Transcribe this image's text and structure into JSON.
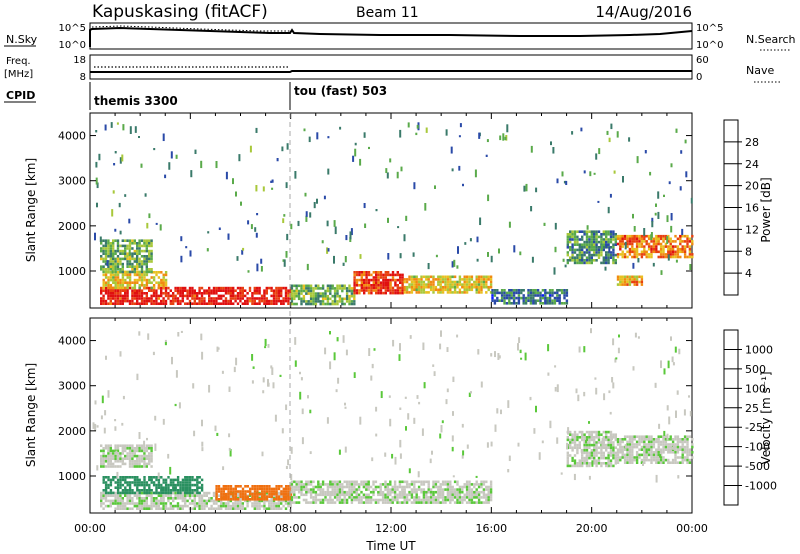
{
  "header": {
    "station": "Kapuskasing (fitACF)",
    "beam": "Beam 11",
    "date": "14/Aug/2016"
  },
  "nsky_panel": {
    "label": "N.Sky",
    "right_label": "N.Search",
    "left_ticks": [
      "10^5",
      "10^0"
    ],
    "right_ticks": [
      "10^5",
      "10^0"
    ]
  },
  "freq_panel": {
    "label_line1": "Freq.",
    "label_line2": "[MHz]",
    "left_ticks": [
      "18",
      "8"
    ],
    "right_ticks": [
      "60",
      "0"
    ],
    "right_label": "Nave"
  },
  "cpid": {
    "label": "CPID",
    "programs": [
      {
        "name": "themis 3300",
        "start_hour": 0,
        "end_hour": 8
      },
      {
        "name": "tou (fast) 503",
        "start_hour": 8,
        "end_hour": 24
      }
    ]
  },
  "chart_data": [
    {
      "type": "heatmap",
      "panel": "power",
      "ylabel": "Slant Range [km]",
      "xlabel": "",
      "ylim": [
        180,
        4500
      ],
      "xlim": [
        0,
        24
      ],
      "y_ticks": [
        1000,
        2000,
        3000,
        4000
      ],
      "colorbar": {
        "label": "Power [dB]",
        "ticks": [
          "28",
          "24",
          "20",
          "16",
          "12",
          "8",
          "4"
        ],
        "colors": [
          "#0a1cff",
          "#2a4aa8",
          "#3a7a6a",
          "#5aaa4a",
          "#a8c83a",
          "#e8c020",
          "#f08a10",
          "#e84010",
          "#e01010"
        ]
      },
      "regions": [
        {
          "t0": 0.4,
          "t1": 8.0,
          "r0": 250,
          "r1": 650,
          "value": 28
        },
        {
          "t0": 0.5,
          "t1": 3.0,
          "r0": 650,
          "r1": 1000,
          "value": 18
        },
        {
          "t0": 0.4,
          "t1": 2.5,
          "r0": 1000,
          "r1": 1700,
          "value": 12
        },
        {
          "t0": 8.0,
          "t1": 10.5,
          "r0": 250,
          "r1": 700,
          "value": 12
        },
        {
          "t0": 10.5,
          "t1": 12.5,
          "r0": 500,
          "r1": 1000,
          "value": 26
        },
        {
          "t0": 12.5,
          "t1": 16.0,
          "r0": 500,
          "r1": 900,
          "value": 18
        },
        {
          "t0": 16.0,
          "t1": 19.0,
          "r0": 300,
          "r1": 600,
          "value": 8
        },
        {
          "t0": 19.0,
          "t1": 21.0,
          "r0": 1200,
          "r1": 1900,
          "value": 10
        },
        {
          "t0": 21.0,
          "t1": 24.0,
          "r0": 1300,
          "r1": 1800,
          "value": 22
        },
        {
          "t0": 21.0,
          "t1": 22.0,
          "r0": 700,
          "r1": 900,
          "value": 20
        }
      ]
    },
    {
      "type": "heatmap",
      "panel": "velocity",
      "ylabel": "Slant Range [km]",
      "xlabel": "Time UT",
      "ylim": [
        180,
        4500
      ],
      "xlim": [
        0,
        24
      ],
      "y_ticks": [
        1000,
        2000,
        3000,
        4000
      ],
      "x_ticks": [
        "00:00",
        "04:00",
        "08:00",
        "12:00",
        "16:00",
        "20:00",
        "00:00"
      ],
      "colorbar": {
        "label": "Velocity [m s⁻¹]",
        "ticks": [
          "1000",
          "500",
          "100",
          "25",
          "-25",
          "-100",
          "-500",
          "-1000"
        ],
        "colors": [
          "#1830b0",
          "#2a60a8",
          "#2a9060",
          "#5ac83a",
          "#c8c8c0",
          "#f0a020",
          "#f07010",
          "#e82010",
          "#e00000"
        ]
      },
      "regions": [
        {
          "t0": 0.4,
          "t1": 8.0,
          "r0": 250,
          "r1": 650,
          "value": 0
        },
        {
          "t0": 0.5,
          "t1": 4.5,
          "r0": 650,
          "r1": 1000,
          "value": 60
        },
        {
          "t0": 0.4,
          "t1": 2.5,
          "r0": 1200,
          "r1": 1700,
          "value": 0
        },
        {
          "t0": 5.0,
          "t1": 8.0,
          "r0": 500,
          "r1": 800,
          "value": -150
        },
        {
          "t0": 8.0,
          "t1": 16.0,
          "r0": 400,
          "r1": 900,
          "value": 0
        },
        {
          "t0": 19.0,
          "t1": 21.0,
          "r0": 1200,
          "r1": 2000,
          "value": 0
        },
        {
          "t0": 21.0,
          "t1": 24.0,
          "r0": 1300,
          "r1": 1900,
          "value": 0
        }
      ]
    }
  ]
}
